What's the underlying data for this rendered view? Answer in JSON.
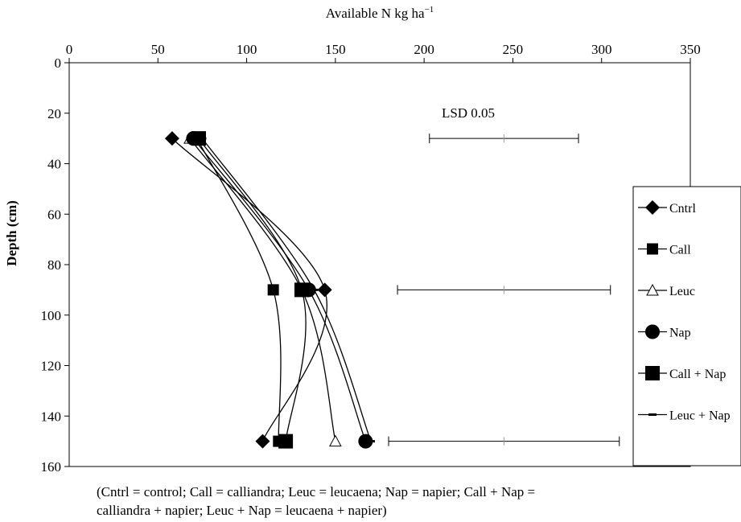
{
  "chart_data": {
    "type": "line",
    "orientation": "depth-profile",
    "xlabel": "Available N kg ha",
    "xlabel_sup": "−1",
    "ylabel": "Depth (cm)",
    "xlim": [
      0,
      350
    ],
    "ylim": [
      0,
      160
    ],
    "x_ticks": [
      "0",
      "50",
      "100",
      "150",
      "200",
      "250",
      "300",
      "350"
    ],
    "y_ticks": [
      "0",
      "20",
      "40",
      "60",
      "80",
      "100",
      "120",
      "140",
      "160"
    ],
    "x_axis_position": "top",
    "y_inverted": true,
    "grid": false,
    "legend_position": "right",
    "series": [
      {
        "name": "Cntrl",
        "marker": "diamond",
        "depth": [
          30,
          90,
          150
        ],
        "values": [
          58,
          144,
          109
        ]
      },
      {
        "name": "Call",
        "marker": "square",
        "depth": [
          30,
          90,
          150
        ],
        "values": [
          72,
          115,
          118
        ]
      },
      {
        "name": "Leuc",
        "marker": "triangle-open",
        "depth": [
          30,
          90,
          150
        ],
        "values": [
          68,
          131,
          150
        ]
      },
      {
        "name": "Nap",
        "marker": "circle",
        "depth": [
          30,
          90,
          150
        ],
        "values": [
          70,
          135,
          167
        ]
      },
      {
        "name": "Call + Nap",
        "marker": "square-large",
        "depth": [
          30,
          90,
          150
        ],
        "values": [
          73,
          131,
          122
        ]
      },
      {
        "name": "Leuc + Nap",
        "marker": "dash",
        "depth": [
          30,
          90,
          150
        ],
        "values": [
          75,
          138,
          170
        ]
      }
    ],
    "lsd": {
      "label": "LSD 0.05",
      "bars": [
        {
          "depth": 30,
          "low": 203,
          "mid": 245,
          "high": 287
        },
        {
          "depth": 90,
          "low": 185,
          "mid": 245,
          "high": 305
        },
        {
          "depth": 150,
          "low": 180,
          "mid": 245,
          "high": 310
        }
      ]
    }
  },
  "caption": "(Cntrl = control;  Call = calliandra; Leuc = leucaena;  Nap = napier;  Call + Nap =\ncalliandra + napier;  Leuc + Nap = leucaena + napier)"
}
